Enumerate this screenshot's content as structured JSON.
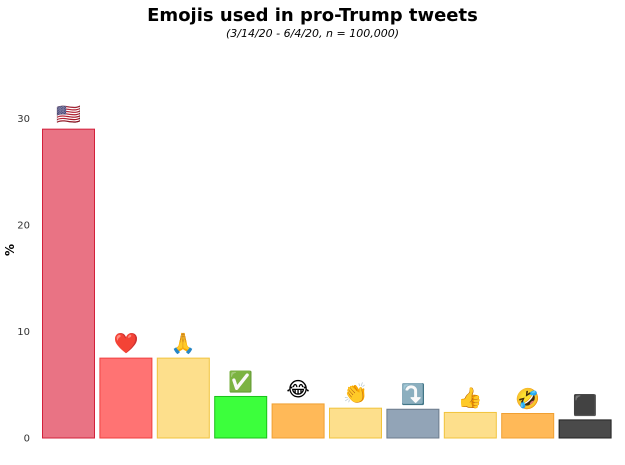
{
  "chart_data": {
    "type": "bar",
    "title": "Emojis used in pro-Trump tweets",
    "subtitle": "(3/14/20 - 6/4/20, n = 100,000)",
    "xlabel": "",
    "ylabel": "%",
    "ylim": [
      0,
      31
    ],
    "yticks": [
      "0",
      "10",
      "20",
      "30"
    ],
    "categories": [
      "🇺🇸",
      "❤️",
      "🙏",
      "✅",
      "😂",
      "👏",
      "⤵️",
      "👍",
      "🤣",
      "⬛"
    ],
    "emoji_names": [
      "us-flag",
      "red-heart",
      "folded-hands",
      "check-mark",
      "tears-of-joy",
      "clapping-hands",
      "arrow-curving-down",
      "thumbs-up",
      "rolling-on-floor-laughing",
      "black-square"
    ],
    "values": [
      29.0,
      7.5,
      7.5,
      3.9,
      3.2,
      2.8,
      2.7,
      2.4,
      2.3,
      1.7
    ],
    "fill_colors": [
      "#e97384",
      "#ff7373",
      "#fddf8c",
      "#3cff3c",
      "#ffb958",
      "#fddf8c",
      "#92a4b7",
      "#fddf8c",
      "#ffb958",
      "#4a4a4a"
    ],
    "stroke_colors": [
      "#d3203a",
      "#f03e3e",
      "#f1c33c",
      "#1ac11a",
      "#f0a032",
      "#f1c33c",
      "#6c7b8c",
      "#f1c33c",
      "#f0a032",
      "#222222"
    ],
    "grid": false
  }
}
